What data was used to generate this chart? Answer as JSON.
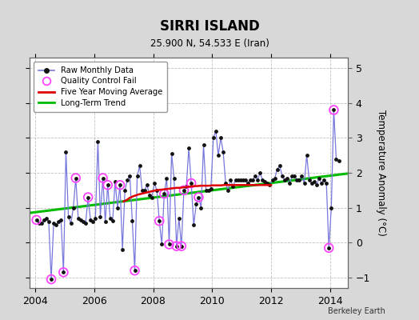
{
  "title": "SIRRI ISLAND",
  "subtitle": "25.900 N, 54.533 E (Iran)",
  "ylabel": "Temperature Anomaly (°C)",
  "credit": "Berkeley Earth",
  "xlim": [
    2003.8,
    2014.6
  ],
  "ylim": [
    -1.3,
    5.3
  ],
  "yticks": [
    -1,
    0,
    1,
    2,
    3,
    4,
    5
  ],
  "xticks": [
    2004,
    2006,
    2008,
    2010,
    2012,
    2014
  ],
  "background_color": "#d8d8d8",
  "plot_bg_color": "#ffffff",
  "grid_color": "#b0b0b0",
  "raw_line_color": "#7777dd",
  "raw_dot_color": "#111111",
  "qc_fail_color": "#ff44ff",
  "moving_avg_color": "#dd0000",
  "trend_color": "#00bb00",
  "raw_x": [
    2004.042,
    2004.125,
    2004.208,
    2004.292,
    2004.375,
    2004.458,
    2004.542,
    2004.625,
    2004.708,
    2004.792,
    2004.875,
    2004.958,
    2005.042,
    2005.125,
    2005.208,
    2005.292,
    2005.375,
    2005.458,
    2005.542,
    2005.625,
    2005.708,
    2005.792,
    2005.875,
    2005.958,
    2006.042,
    2006.125,
    2006.208,
    2006.292,
    2006.375,
    2006.458,
    2006.542,
    2006.625,
    2006.708,
    2006.792,
    2006.875,
    2006.958,
    2007.042,
    2007.125,
    2007.208,
    2007.292,
    2007.375,
    2007.458,
    2007.542,
    2007.625,
    2007.708,
    2007.792,
    2007.875,
    2007.958,
    2008.042,
    2008.125,
    2008.208,
    2008.292,
    2008.375,
    2008.458,
    2008.542,
    2008.625,
    2008.708,
    2008.792,
    2008.875,
    2008.958,
    2009.042,
    2009.125,
    2009.208,
    2009.292,
    2009.375,
    2009.458,
    2009.542,
    2009.625,
    2009.708,
    2009.792,
    2009.875,
    2009.958,
    2010.042,
    2010.125,
    2010.208,
    2010.292,
    2010.375,
    2010.458,
    2010.542,
    2010.625,
    2010.708,
    2010.792,
    2010.875,
    2010.958,
    2011.042,
    2011.125,
    2011.208,
    2011.292,
    2011.375,
    2011.458,
    2011.542,
    2011.625,
    2011.708,
    2011.792,
    2011.875,
    2011.958,
    2012.042,
    2012.125,
    2012.208,
    2012.292,
    2012.375,
    2012.458,
    2012.542,
    2012.625,
    2012.708,
    2012.792,
    2012.875,
    2012.958,
    2013.042,
    2013.125,
    2013.208,
    2013.292,
    2013.375,
    2013.458,
    2013.542,
    2013.625,
    2013.708,
    2013.792,
    2013.875,
    2013.958,
    2014.042,
    2014.125,
    2014.208,
    2014.292
  ],
  "raw_y": [
    0.65,
    0.55,
    0.55,
    0.65,
    0.7,
    0.6,
    -1.05,
    0.55,
    0.5,
    0.6,
    0.65,
    -0.85,
    2.6,
    0.75,
    0.55,
    1.0,
    1.85,
    0.7,
    0.65,
    0.6,
    0.55,
    1.3,
    0.65,
    0.6,
    0.7,
    2.9,
    0.75,
    1.85,
    0.6,
    1.65,
    0.7,
    0.62,
    1.75,
    1.0,
    1.65,
    -0.2,
    1.5,
    1.8,
    1.9,
    0.62,
    -0.8,
    1.9,
    2.2,
    1.5,
    1.5,
    1.65,
    1.35,
    1.3,
    1.7,
    1.5,
    0.62,
    -0.05,
    1.4,
    1.85,
    -0.05,
    2.55,
    1.85,
    -0.1,
    0.7,
    -0.1,
    1.5,
    1.6,
    2.7,
    1.7,
    0.5,
    1.1,
    1.3,
    1.0,
    2.8,
    1.5,
    1.5,
    1.55,
    3.0,
    3.2,
    2.5,
    3.0,
    2.6,
    1.7,
    1.5,
    1.8,
    1.6,
    1.8,
    1.8,
    1.8,
    1.8,
    1.8,
    1.7,
    1.8,
    1.8,
    1.9,
    1.8,
    2.0,
    1.8,
    1.75,
    1.7,
    1.65,
    1.8,
    1.85,
    2.1,
    2.2,
    1.9,
    1.8,
    1.85,
    1.7,
    1.9,
    1.9,
    1.8,
    1.8,
    1.9,
    1.7,
    2.5,
    1.8,
    1.7,
    1.75,
    1.65,
    1.85,
    1.7,
    1.8,
    1.7,
    -0.15,
    1.0,
    3.8,
    2.4,
    2.35
  ],
  "qc_fail_x": [
    2004.042,
    2004.542,
    2004.958,
    2005.375,
    2005.792,
    2006.292,
    2006.458,
    2006.875,
    2007.375,
    2008.208,
    2008.375,
    2008.542,
    2008.792,
    2008.958,
    2009.042,
    2009.292,
    2009.542,
    2013.958,
    2014.125
  ],
  "qc_fail_y": [
    0.65,
    -1.05,
    -0.85,
    1.85,
    1.3,
    1.85,
    1.65,
    1.65,
    -0.8,
    0.62,
    1.4,
    -0.05,
    -0.1,
    -0.1,
    1.5,
    1.7,
    1.3,
    -0.15,
    3.8
  ],
  "moving_avg_x": [
    2007.0,
    2007.1,
    2007.2,
    2007.3,
    2007.4,
    2007.5,
    2007.6,
    2007.7,
    2007.8,
    2007.9,
    2008.0,
    2008.1,
    2008.2,
    2008.3,
    2008.4,
    2008.5,
    2008.6,
    2008.7,
    2008.8,
    2008.9,
    2009.0,
    2009.1,
    2009.2,
    2009.3,
    2009.4,
    2009.5,
    2009.6,
    2009.7,
    2009.8,
    2009.9,
    2010.0,
    2010.1,
    2010.2,
    2010.3,
    2010.4,
    2010.5,
    2010.6,
    2010.7,
    2010.8,
    2010.9,
    2011.0,
    2011.2,
    2011.5,
    2011.8,
    2012.0
  ],
  "moving_avg_y": [
    1.18,
    1.22,
    1.28,
    1.32,
    1.35,
    1.38,
    1.4,
    1.42,
    1.44,
    1.46,
    1.48,
    1.5,
    1.51,
    1.52,
    1.53,
    1.54,
    1.55,
    1.56,
    1.57,
    1.57,
    1.58,
    1.59,
    1.6,
    1.61,
    1.62,
    1.62,
    1.63,
    1.63,
    1.63,
    1.63,
    1.64,
    1.64,
    1.64,
    1.64,
    1.65,
    1.65,
    1.65,
    1.65,
    1.65,
    1.65,
    1.65,
    1.65,
    1.65,
    1.65,
    1.65
  ],
  "trend_x": [
    2003.8,
    2014.6
  ],
  "trend_y": [
    0.85,
    1.98
  ]
}
